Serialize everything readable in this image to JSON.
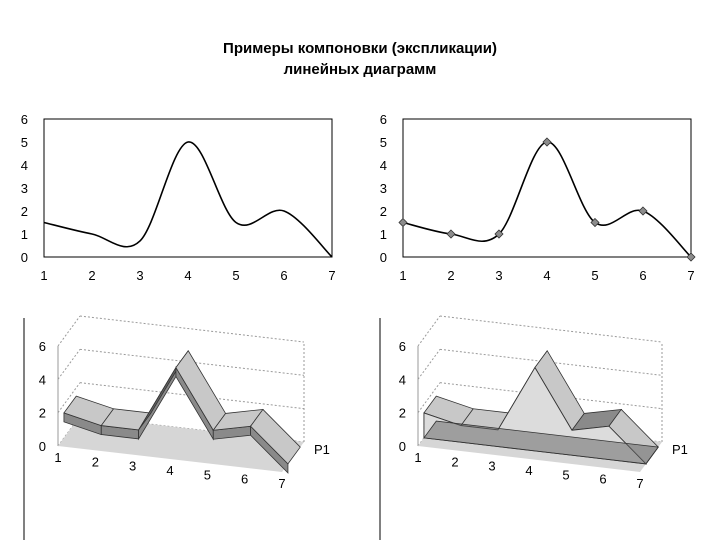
{
  "title": {
    "line1": "Примеры компоновки (экспликации)",
    "line2": "линейных диаграмм"
  },
  "colors": {
    "axis": "#000000",
    "grid_2d": "#000000",
    "line": "#000000",
    "marker": "#8c8c8c",
    "ribbon_top": "#c8c8c8",
    "ribbon_side": "#8a8a8a",
    "ribbon_dark": "#606060",
    "area_fill": "#dcdcdc",
    "floor_3d": "#d6d6d6",
    "grid_3d": "#9a9a9a"
  },
  "chart_data": [
    {
      "type": "line",
      "subtype": "smoothed",
      "markers": false,
      "x": [
        1,
        2,
        3,
        4,
        5,
        6,
        7
      ],
      "values": [
        1.5,
        1.0,
        0.7,
        5.0,
        1.5,
        2.0,
        0.0
      ],
      "xticks": [
        "1",
        "2",
        "3",
        "4",
        "5",
        "6",
        "7"
      ],
      "yticks": [
        "0",
        "1",
        "2",
        "3",
        "4",
        "5",
        "6"
      ],
      "ylim": [
        0,
        6
      ],
      "grid": false,
      "legend": null
    },
    {
      "type": "line",
      "subtype": "smoothed",
      "markers": true,
      "marker_shape": "diamond",
      "x": [
        1,
        2,
        3,
        4,
        5,
        6,
        7
      ],
      "values": [
        1.5,
        1.0,
        1.0,
        5.0,
        1.5,
        2.0,
        0.0
      ],
      "xticks": [
        "1",
        "2",
        "3",
        "4",
        "5",
        "6",
        "7"
      ],
      "yticks": [
        "0",
        "1",
        "2",
        "3",
        "4",
        "5",
        "6"
      ],
      "ylim": [
        0,
        6
      ],
      "grid": false,
      "legend": null
    },
    {
      "type": "line",
      "subtype": "3d-ribbon",
      "x": [
        1,
        2,
        3,
        4,
        5,
        6,
        7
      ],
      "values": [
        1.5,
        1.0,
        1.0,
        5.0,
        1.5,
        2.0,
        0.0
      ],
      "xticks": [
        "1",
        "2",
        "3",
        "4",
        "5",
        "6",
        "7"
      ],
      "yticks": [
        "0",
        "2",
        "4",
        "6"
      ],
      "ylim": [
        0,
        6
      ],
      "grid": true,
      "depth_label": "P1"
    },
    {
      "type": "area",
      "subtype": "3d-area",
      "x": [
        1,
        2,
        3,
        4,
        5,
        6,
        7
      ],
      "values": [
        1.5,
        1.0,
        1.0,
        5.0,
        1.5,
        2.0,
        0.0
      ],
      "xticks": [
        "1",
        "2",
        "3",
        "4",
        "5",
        "6",
        "7"
      ],
      "yticks": [
        "0",
        "2",
        "4",
        "6"
      ],
      "ylim": [
        0,
        6
      ],
      "grid": true,
      "depth_label": "P1"
    }
  ]
}
